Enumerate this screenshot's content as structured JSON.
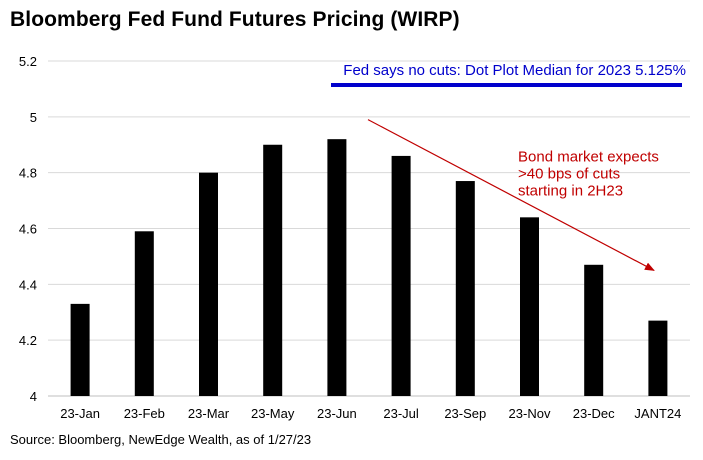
{
  "title": "Bloomberg Fed Fund Futures Pricing (WIRP)",
  "source": "Source: Bloomberg, NewEdge Wealth, as of 1/27/23",
  "chart_data": {
    "type": "bar",
    "title": "Bloomberg Fed Fund Futures Pricing (WIRP)",
    "categories": [
      "23-Jan",
      "23-Feb",
      "23-Mar",
      "23-May",
      "23-Jun",
      "23-Jul",
      "23-Sep",
      "23-Nov",
      "23-Dec",
      "JANT24"
    ],
    "values": [
      4.33,
      4.59,
      4.8,
      4.9,
      4.92,
      4.86,
      4.77,
      4.64,
      4.47,
      4.27
    ],
    "ylim": [
      4,
      5.2
    ],
    "yticks": [
      "4",
      "4.2",
      "4.4",
      "4.6",
      "4.8",
      "5",
      "5.2"
    ],
    "xlabel": "",
    "ylabel": "",
    "grid": true,
    "bar_color": "#000000",
    "reference_line": {
      "value": 5.125,
      "color": "#0000CC"
    },
    "annotations": {
      "fed_note": "Fed says no cuts: Dot Plot Median for 2023 5.125%",
      "bond_note": [
        "Bond market expects",
        ">40 bps of cuts",
        "starting in 2H23"
      ]
    },
    "colors": {
      "fed_note": "#0000CC",
      "bond_note": "#C00000",
      "trend_arrow": "#C00000"
    }
  }
}
